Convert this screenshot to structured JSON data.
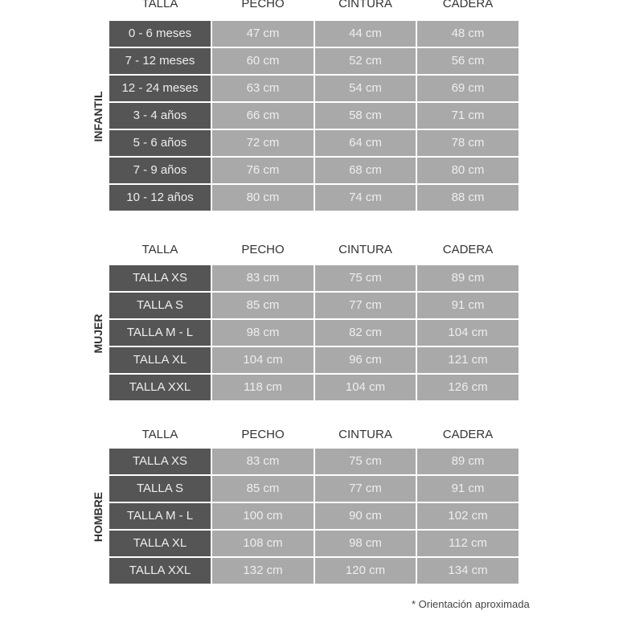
{
  "headers": [
    "TALLA",
    "PECHO",
    "CINTURA",
    "CADERA"
  ],
  "sections": [
    {
      "label": "INFANTIL",
      "rows": [
        [
          "0 - 6 meses",
          "47 cm",
          "44 cm",
          "48 cm"
        ],
        [
          "7 - 12 meses",
          "60 cm",
          "52 cm",
          "56 cm"
        ],
        [
          "12 - 24 meses",
          "63 cm",
          "54 cm",
          "69 cm"
        ],
        [
          "3 - 4 años",
          "66 cm",
          "58 cm",
          "71 cm"
        ],
        [
          "5 - 6 años",
          "72 cm",
          "64 cm",
          "78 cm"
        ],
        [
          "7 - 9 años",
          "76 cm",
          "68 cm",
          "80 cm"
        ],
        [
          "10 - 12 años",
          "80 cm",
          "74 cm",
          "88 cm"
        ]
      ]
    },
    {
      "label": "MUJER",
      "rows": [
        [
          "TALLA XS",
          "83 cm",
          "75 cm",
          "89 cm"
        ],
        [
          "TALLA S",
          "85 cm",
          "77 cm",
          "91 cm"
        ],
        [
          "TALLA M - L",
          "98 cm",
          "82 cm",
          "104 cm"
        ],
        [
          "TALLA XL",
          "104 cm",
          "96 cm",
          "121 cm"
        ],
        [
          "TALLA XXL",
          "118 cm",
          "104 cm",
          "126 cm"
        ]
      ]
    },
    {
      "label": "HOMBRE",
      "rows": [
        [
          "TALLA XS",
          "83 cm",
          "75 cm",
          "89 cm"
        ],
        [
          "TALLA S",
          "85 cm",
          "77 cm",
          "91 cm"
        ],
        [
          "TALLA M - L",
          "100 cm",
          "90 cm",
          "102 cm"
        ],
        [
          "TALLA XL",
          "108 cm",
          "98 cm",
          "112 cm"
        ],
        [
          "TALLA XXL",
          "132 cm",
          "120 cm",
          "134 cm"
        ]
      ]
    }
  ],
  "footnote": "* Orientación aproximada",
  "colors": {
    "size_cell": "#555555",
    "value_cell": "#a9a9a9",
    "cell_text": "#eeeeee"
  }
}
